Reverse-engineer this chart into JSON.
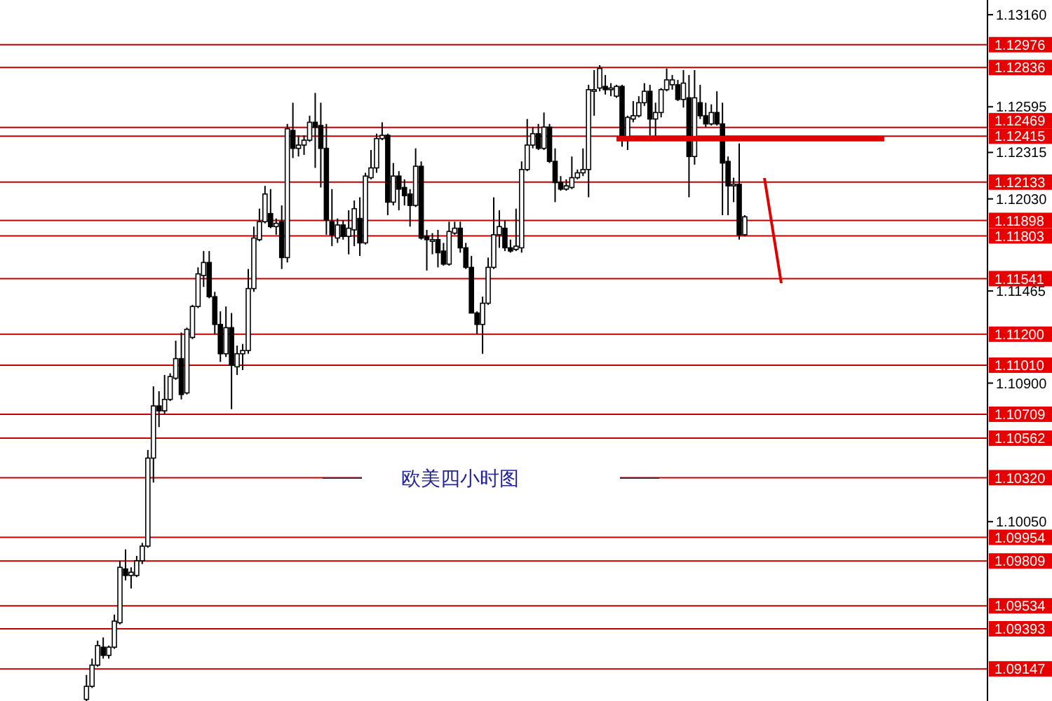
{
  "chart_data": {
    "type": "candlestick",
    "title": "欧美四小时图",
    "categories": [
      null,
      null,
      null,
      null,
      null,
      null,
      null,
      null,
      null,
      null,
      null,
      null,
      null,
      null,
      null,
      null,
      null,
      null,
      null,
      null,
      null,
      null,
      null,
      null,
      null,
      null,
      null,
      null,
      null,
      null,
      null,
      null,
      null,
      null,
      null,
      null,
      null,
      null,
      null,
      null,
      null,
      null,
      null,
      null,
      null,
      null,
      null,
      null,
      null,
      null,
      null,
      null,
      null,
      null,
      null,
      null,
      null,
      null,
      null,
      null,
      null,
      null,
      null,
      null,
      null,
      null,
      null,
      null,
      null,
      null,
      null,
      null,
      null,
      null,
      null,
      null,
      null,
      null,
      null,
      null,
      null,
      null,
      null,
      null,
      null,
      null,
      null,
      null,
      null,
      null,
      null,
      null,
      null,
      null,
      null,
      null,
      null,
      null,
      null,
      null,
      null,
      null,
      null,
      null,
      null,
      null,
      null,
      null,
      null,
      null,
      null,
      null,
      null,
      null,
      null,
      null,
      null,
      null,
      null,
      null,
      null,
      null,
      null,
      null,
      null,
      null,
      null,
      null,
      null,
      null,
      null,
      null,
      null,
      null,
      null,
      null,
      null,
      null,
      null,
      null,
      null,
      null,
      null,
      null,
      null,
      null,
      null,
      null,
      null,
      null,
      null,
      null,
      null,
      null,
      null,
      null,
      null,
      null,
      null,
      null,
      null,
      null,
      null,
      null,
      null,
      null,
      null,
      null,
      null,
      null,
      null,
      null,
      null,
      null,
      null,
      null,
      null
    ],
    "ohlc": [
      null,
      null,
      null,
      null,
      null,
      null,
      null,
      null,
      null,
      null,
      null,
      null,
      null,
      null,
      null,
      [
        1.0896,
        1.0911,
        1.0895,
        1.0904
      ],
      [
        1.0904,
        1.0921,
        1.0903,
        1.0917
      ],
      [
        1.0917,
        1.0932,
        1.0916,
        1.0929
      ],
      [
        1.0928,
        1.0934,
        1.0921,
        1.0923
      ],
      [
        1.0923,
        1.0929,
        1.0921,
        1.0928
      ],
      [
        1.0928,
        1.0948,
        1.0927,
        1.0944
      ],
      [
        1.0943,
        1.0981,
        1.0942,
        1.0977
      ],
      [
        1.0976,
        1.0988,
        1.0969,
        1.0972
      ],
      [
        1.0972,
        1.0977,
        1.0964,
        1.0974
      ],
      [
        1.0972,
        1.0984,
        1.0971,
        1.0981
      ],
      [
        1.0981,
        1.0992,
        1.0979,
        1.099
      ],
      [
        1.099,
        1.1049,
        1.0989,
        1.1044
      ],
      [
        1.1044,
        1.1088,
        1.1029,
        1.1076
      ],
      [
        1.1076,
        1.1085,
        1.1063,
        1.1073
      ],
      [
        1.1073,
        1.1095,
        1.1071,
        1.108
      ],
      [
        1.108,
        1.1096,
        1.1079,
        1.1094
      ],
      [
        1.1093,
        1.1116,
        1.1092,
        1.1105
      ],
      [
        1.1105,
        1.1121,
        1.108,
        1.1083
      ],
      [
        1.1084,
        1.1124,
        1.1083,
        1.1123
      ],
      [
        1.1118,
        1.1138,
        1.1117,
        1.1137
      ],
      [
        1.1137,
        1.1161,
        1.1136,
        1.1157
      ],
      [
        1.1156,
        1.1171,
        1.1149,
        1.1164
      ],
      [
        1.1164,
        1.1171,
        1.1142,
        1.1143
      ],
      [
        1.1143,
        1.1146,
        1.112,
        1.1126
      ],
      [
        1.1126,
        1.1134,
        1.1103,
        1.1108
      ],
      [
        1.1108,
        1.1137,
        1.1106,
        1.1124
      ],
      [
        1.1124,
        1.1133,
        1.1074,
        1.1101
      ],
      [
        1.11,
        1.1113,
        1.1095,
        1.1108
      ],
      [
        1.1108,
        1.1114,
        1.1098,
        1.111
      ],
      [
        1.111,
        1.116,
        1.1108,
        1.1148
      ],
      [
        1.1148,
        1.1186,
        1.1146,
        1.1179
      ],
      [
        1.1178,
        1.1197,
        1.1177,
        1.1189
      ],
      [
        1.1189,
        1.1211,
        1.1188,
        1.1206
      ],
      [
        1.1194,
        1.1209,
        1.1185,
        1.1186
      ],
      [
        1.1186,
        1.1191,
        1.1181,
        1.1188
      ],
      [
        1.1189,
        1.1199,
        1.116,
        1.1167
      ],
      [
        1.1167,
        1.1249,
        1.1164,
        1.1246
      ],
      [
        1.1245,
        1.1262,
        1.1228,
        1.1234
      ],
      [
        1.1234,
        1.1242,
        1.1229,
        1.1236
      ],
      [
        1.1236,
        1.1242,
        1.123,
        1.1239
      ],
      [
        1.1239,
        1.1254,
        1.1238,
        1.125
      ],
      [
        1.125,
        1.1268,
        1.1222,
        1.1247
      ],
      [
        1.1248,
        1.1262,
        1.121,
        1.1234
      ],
      [
        1.1234,
        1.1249,
        1.1181,
        1.119
      ],
      [
        1.1189,
        1.1209,
        1.1174,
        1.1181
      ],
      [
        1.1179,
        1.1191,
        1.1176,
        1.1187
      ],
      [
        1.1187,
        1.119,
        1.1178,
        1.118
      ],
      [
        1.118,
        1.1196,
        1.1169,
        1.1185
      ],
      [
        1.1184,
        1.1202,
        1.1174,
        1.1197
      ],
      [
        1.1191,
        1.1204,
        1.1168,
        1.1176
      ],
      [
        1.1176,
        1.1219,
        1.1175,
        1.1217
      ],
      [
        1.1216,
        1.1233,
        1.1215,
        1.1222
      ],
      [
        1.1222,
        1.1243,
        1.1219,
        1.124
      ],
      [
        1.124,
        1.125,
        1.1239,
        1.1242
      ],
      [
        1.1242,
        1.1243,
        1.1193,
        1.1201
      ],
      [
        1.1201,
        1.1225,
        1.1199,
        1.1217
      ],
      [
        1.1217,
        1.122,
        1.1196,
        1.1209
      ],
      [
        1.121,
        1.1215,
        1.1199,
        1.1205
      ],
      [
        1.1206,
        1.1209,
        1.1186,
        1.1199
      ],
      [
        1.1199,
        1.1234,
        1.1198,
        1.1223
      ],
      [
        1.1223,
        1.1226,
        1.1178,
        1.1179
      ],
      [
        1.118,
        1.1184,
        1.1159,
        1.1178
      ],
      [
        1.1177,
        1.1182,
        1.1169,
        1.1178
      ],
      [
        1.1178,
        1.1184,
        1.1161,
        1.117
      ],
      [
        1.1171,
        1.1176,
        1.1162,
        1.1163
      ],
      [
        1.1163,
        1.1189,
        1.1162,
        1.1183
      ],
      [
        1.1182,
        1.1189,
        1.1181,
        1.1185
      ],
      [
        1.1185,
        1.1189,
        1.117,
        1.1173
      ],
      [
        1.1173,
        1.1176,
        1.116,
        1.1161
      ],
      [
        1.1161,
        1.1168,
        1.1133,
        1.1133
      ],
      [
        1.1133,
        1.1134,
        1.112,
        1.1126
      ],
      [
        1.1126,
        1.1143,
        1.1108,
        1.1139
      ],
      [
        1.1139,
        1.1167,
        1.1138,
        1.1161
      ],
      [
        1.1161,
        1.1204,
        1.116,
        1.1181
      ],
      [
        1.1181,
        1.1196,
        1.1173,
        1.1186
      ],
      [
        1.1185,
        1.119,
        1.1171,
        1.1173
      ],
      [
        1.1173,
        1.1178,
        1.117,
        1.1171
      ],
      [
        1.1172,
        1.1197,
        1.1171,
        1.1174
      ],
      [
        1.1173,
        1.1226,
        1.117,
        1.1221
      ],
      [
        1.1221,
        1.1252,
        1.122,
        1.1236
      ],
      [
        1.1236,
        1.1247,
        1.1234,
        1.1243
      ],
      [
        1.1243,
        1.1249,
        1.1233,
        1.1234
      ],
      [
        1.1234,
        1.1256,
        1.1233,
        1.1247
      ],
      [
        1.1247,
        1.1249,
        1.1225,
        1.1226
      ],
      [
        1.1226,
        1.1234,
        1.1201,
        1.1213
      ],
      [
        1.1213,
        1.1217,
        1.1208,
        1.1209
      ],
      [
        1.1209,
        1.1215,
        1.1208,
        1.1211
      ],
      [
        1.121,
        1.1229,
        1.1209,
        1.1216
      ],
      [
        1.1216,
        1.1221,
        1.1215,
        1.1219
      ],
      [
        1.1219,
        1.1234,
        1.1217,
        1.1221
      ],
      [
        1.1221,
        1.1273,
        1.1204,
        1.127
      ],
      [
        1.1269,
        1.1282,
        1.1254,
        1.127
      ],
      [
        1.1271,
        1.1285,
        1.1269,
        1.1283
      ],
      [
        1.1272,
        1.1279,
        1.1267,
        1.127
      ],
      [
        1.127,
        1.1274,
        1.1266,
        1.1271
      ],
      [
        1.1266,
        1.1273,
        1.1265,
        1.1272
      ],
      [
        1.1272,
        1.1273,
        1.1235,
        1.124
      ],
      [
        1.124,
        1.1254,
        1.1233,
        1.1253
      ],
      [
        1.1252,
        1.1263,
        1.125,
        1.1254
      ],
      [
        1.1254,
        1.1266,
        1.1253,
        1.1262
      ],
      [
        1.1262,
        1.1274,
        1.126,
        1.1269
      ],
      [
        1.1269,
        1.1273,
        1.1242,
        1.1252
      ],
      [
        1.1252,
        1.1262,
        1.1241,
        1.1256
      ],
      [
        1.1256,
        1.1271,
        1.1253,
        1.127
      ],
      [
        1.127,
        1.1283,
        1.1269,
        1.1276
      ],
      [
        1.1273,
        1.1279,
        1.127,
        1.1276
      ],
      [
        1.1273,
        1.1276,
        1.1263,
        1.1264
      ],
      [
        1.1264,
        1.1282,
        1.1259,
        1.1274
      ],
      [
        1.1265,
        1.1279,
        1.1204,
        1.1229
      ],
      [
        1.1229,
        1.1282,
        1.1224,
        1.1265
      ],
      [
        1.1262,
        1.1273,
        1.1252,
        1.1254
      ],
      [
        1.1254,
        1.1262,
        1.1247,
        1.1249
      ],
      [
        1.1249,
        1.1261,
        1.1248,
        1.1256
      ],
      [
        1.1256,
        1.1269,
        1.1248,
        1.1249
      ],
      [
        1.1249,
        1.1262,
        1.1193,
        1.1225
      ],
      [
        1.1226,
        1.1229,
        1.1193,
        1.1211
      ],
      [
        1.1211,
        1.1216,
        1.1201,
        1.1212
      ],
      [
        1.1212,
        1.1237,
        1.1178,
        1.1181
      ],
      [
        1.1181,
        1.1193,
        1.118,
        1.1192
      ],
      null,
      null,
      null,
      null,
      null,
      null,
      null,
      null,
      null,
      null,
      null,
      null,
      null,
      null,
      null,
      null,
      null,
      null,
      null,
      null,
      null,
      null,
      null,
      null,
      null,
      null,
      null,
      null,
      null,
      null,
      null,
      null,
      null,
      null,
      null,
      null,
      null,
      null,
      null,
      null,
      null,
      null,
      null
    ],
    "ylim": [
      1.0895,
      1.1325
    ],
    "yticks": [
      {
        "value": 1.1316,
        "label": "1.13160"
      },
      1.12595,
      1.12315,
      {
        "value": 1.1203,
        "label": "1.12030"
      },
      1.11465,
      {
        "value": 1.109,
        "label": "1.10900"
      },
      {
        "value": 1.1005,
        "label": "1.10050"
      }
    ],
    "tick_labels": "y",
    "ref_lines": [
      {
        "axis": "y",
        "value": 1.12976,
        "label": "1.12976",
        "color": "#c00000"
      },
      {
        "axis": "y",
        "value": 1.12836,
        "label": "1.12836",
        "color": "#c00000"
      },
      {
        "axis": "y",
        "value": 1.12469,
        "label": "1.12469",
        "color": "#c00000"
      },
      {
        "axis": "y",
        "value": 1.12415,
        "label": "1.12415",
        "color": "#c00000"
      },
      {
        "axis": "y",
        "value": 1.12133,
        "label": "1.12133",
        "color": "#c00000"
      },
      {
        "axis": "y",
        "value": 1.11898,
        "label": "1.11898",
        "color": "#c00000"
      },
      {
        "axis": "y",
        "value": 1.11803,
        "label": "1.11803",
        "color": "#c00000"
      },
      {
        "axis": "y",
        "value": 1.11541,
        "label": "1.11541",
        "color": "#c00000"
      },
      {
        "axis": "y",
        "value": 1.112,
        "label": "1.11200",
        "color": "#c00000"
      },
      {
        "axis": "y",
        "value": 1.1101,
        "label": "1.11010",
        "color": "#c00000"
      },
      {
        "axis": "y",
        "value": 1.10709,
        "label": "1.10709",
        "color": "#c00000"
      },
      {
        "axis": "y",
        "value": 1.10562,
        "label": "1.10562",
        "color": "#c00000"
      },
      {
        "axis": "y",
        "value": 1.1032,
        "label": "1.10320",
        "color": "#c00000"
      },
      {
        "axis": "y",
        "value": 1.09954,
        "label": "1.09954",
        "color": "#c00000"
      },
      {
        "axis": "y",
        "value": 1.09809,
        "label": "1.09809",
        "color": "#c00000"
      },
      {
        "axis": "y",
        "value": 1.09534,
        "label": "1.09534",
        "color": "#c00000"
      },
      {
        "axis": "y",
        "value": 1.09393,
        "label": "1.09393",
        "color": "#c00000"
      },
      {
        "axis": "y",
        "value": 1.09147,
        "label": "1.09147",
        "color": "#c00000"
      }
    ],
    "series": [
      {
        "type": "line",
        "color": "#e00000",
        "values": [
          null,
          null,
          null,
          null,
          null,
          null,
          null,
          null,
          null,
          null,
          null,
          null,
          null,
          null,
          null,
          null,
          null,
          null,
          null,
          null,
          null,
          null,
          null,
          null,
          null,
          null,
          null,
          null,
          null,
          null,
          null,
          null,
          null,
          null,
          null,
          null,
          null,
          null,
          null,
          null,
          null,
          null,
          null,
          null,
          null,
          null,
          null,
          null,
          null,
          null,
          null,
          null,
          null,
          null,
          null,
          null,
          null,
          null,
          null,
          null,
          null,
          null,
          null,
          null,
          null,
          null,
          null,
          null,
          null,
          null,
          null,
          null,
          null,
          null,
          null,
          null,
          null,
          null,
          null,
          null,
          null,
          null,
          null,
          null,
          null,
          null,
          null,
          null,
          null,
          null,
          null,
          null,
          null,
          null,
          null,
          null,
          null,
          null,
          null,
          null,
          null,
          null,
          null,
          null,
          null,
          null,
          null,
          null,
          null,
          null,
          1.124,
          1.124,
          1.124,
          1.124,
          1.124,
          1.124,
          1.124,
          1.124,
          1.124,
          1.124,
          1.124,
          1.124,
          1.124,
          1.124,
          1.124,
          1.124,
          1.124,
          1.124,
          1.124,
          1.124,
          1.124,
          1.124,
          1.124,
          1.124,
          1.124,
          1.124,
          1.124,
          1.124,
          1.124,
          1.124,
          1.124,
          1.124,
          1.124,
          1.124,
          1.124,
          1.124,
          1.124,
          1.124,
          1.124,
          1.124,
          1.124,
          1.124,
          1.124,
          1.124,
          1.124,
          1.124,
          1.124,
          1.124,
          1.124,
          null,
          null,
          null,
          null,
          null,
          null,
          null,
          null,
          null,
          null,
          null,
          null,
          null,
          null,
          null,
          null,
          null,
          null
        ]
      }
    ],
    "grid": false
  }
}
